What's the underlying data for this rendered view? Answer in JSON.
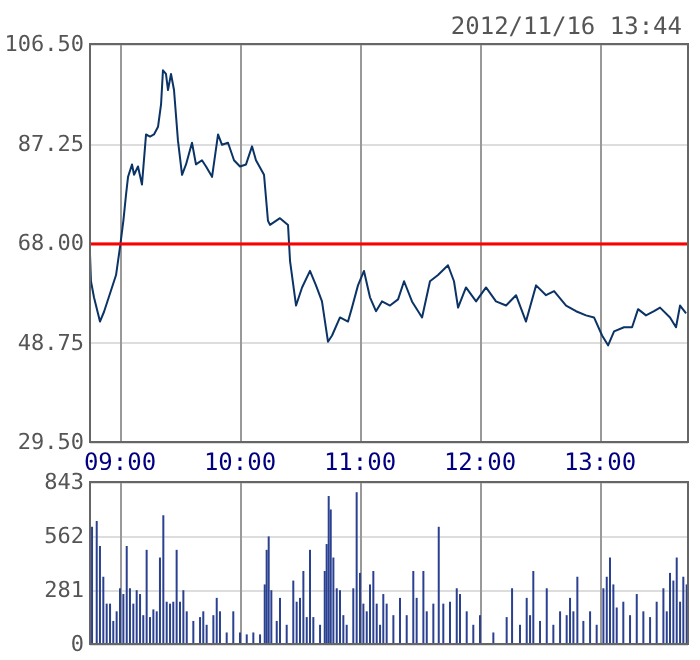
{
  "chart_data": [
    {
      "type": "line",
      "title": "2012/11/16 13:44",
      "x": [
        8.75,
        8.758,
        8.783,
        8.833,
        8.867,
        8.933,
        8.967,
        9.0,
        9.028,
        9.05,
        9.067,
        9.1,
        9.117,
        9.15,
        9.183,
        9.217,
        9.25,
        9.283,
        9.317,
        9.342,
        9.358,
        9.383,
        9.4,
        9.425,
        9.45,
        9.483,
        9.517,
        9.55,
        9.6,
        9.633,
        9.683,
        9.717,
        9.767,
        9.817,
        9.85,
        9.9,
        9.95,
        10.0,
        10.05,
        10.1,
        10.133,
        10.2,
        10.233,
        10.25,
        10.333,
        10.4,
        10.417,
        10.467,
        10.517,
        10.583,
        10.633,
        10.683,
        10.733,
        10.767,
        10.833,
        10.9,
        10.933,
        10.983,
        11.033,
        11.083,
        11.133,
        11.183,
        11.25,
        11.317,
        11.367,
        11.433,
        11.517,
        11.583,
        11.65,
        11.733,
        11.783,
        11.817,
        11.883,
        11.967,
        12.05,
        12.133,
        12.217,
        12.3,
        12.383,
        12.467,
        12.55,
        12.617,
        12.717,
        12.8,
        12.883,
        12.95,
        13.017,
        13.067,
        13.117,
        13.2,
        13.267,
        13.317,
        13.383,
        13.45,
        13.5,
        13.583,
        13.633,
        13.667,
        13.717
      ],
      "series": [
        {
          "color": "#0b3366",
          "values": [
            65.8,
            60.6,
            57.5,
            52.8,
            54.7,
            59.4,
            61.8,
            67.2,
            72.3,
            77.3,
            80.8,
            83.2,
            81.2,
            82.8,
            79.3,
            89,
            88.6,
            89,
            90.5,
            94.8,
            101.4,
            100.7,
            97.6,
            100.7,
            97.6,
            87.8,
            81.2,
            83.2,
            87.4,
            83.2,
            84,
            82.8,
            80.8,
            89,
            87,
            87.4,
            84,
            82.8,
            83.2,
            86.7,
            84,
            81.2,
            72.3,
            71.5,
            72.8,
            71.5,
            64.5,
            55.9,
            59.4,
            62.6,
            59.8,
            56.7,
            48.9,
            50.1,
            53.6,
            52.8,
            55.5,
            59.8,
            62.6,
            57.5,
            54.8,
            56.7,
            55.9,
            57.1,
            60.6,
            56.7,
            53.6,
            60.6,
            61.8,
            63.7,
            60.6,
            55.5,
            59.4,
            56.7,
            59.4,
            56.7,
            55.9,
            57.9,
            52.8,
            59.8,
            57.9,
            58.7,
            55.9,
            54.8,
            54,
            53.6,
            50.1,
            48.2,
            50.9,
            51.7,
            51.7,
            55.2,
            54,
            54.8,
            55.5,
            53.6,
            51.7,
            55.9,
            54.4
          ]
        }
      ],
      "xlim": [
        8.75,
        13.733
      ],
      "xticks": [
        {
          "value": 9,
          "label": "09:00"
        },
        {
          "value": 10,
          "label": "10:00"
        },
        {
          "value": 11,
          "label": "11:00"
        },
        {
          "value": 12,
          "label": "12:00"
        },
        {
          "value": 13,
          "label": "13:00"
        }
      ],
      "ylim": [
        29.5,
        106.5
      ],
      "yticks": [
        {
          "value": 29.5,
          "label": "29.50"
        },
        {
          "value": 48.75,
          "label": "48.75"
        },
        {
          "value": 68,
          "label": "68.00"
        },
        {
          "value": 87.25,
          "label": "87.25"
        },
        {
          "value": 106.5,
          "label": "106.50"
        }
      ],
      "ref_lines": [
        {
          "axis": "y",
          "value": 68,
          "color": "#ff0000"
        }
      ],
      "grid": true,
      "marker": "none",
      "line_style": "solid"
    },
    {
      "type": "bar",
      "x": [
        8.767,
        8.806,
        8.833,
        8.861,
        8.889,
        8.917,
        8.944,
        8.972,
        9.0,
        9.028,
        9.056,
        9.083,
        9.111,
        9.139,
        9.167,
        9.194,
        9.222,
        9.25,
        9.278,
        9.306,
        9.333,
        9.361,
        9.389,
        9.417,
        9.444,
        9.472,
        9.5,
        9.528,
        9.556,
        9.611,
        9.667,
        9.694,
        9.722,
        9.778,
        9.806,
        9.833,
        9.889,
        9.944,
        10.0,
        10.056,
        10.111,
        10.167,
        10.206,
        10.222,
        10.239,
        10.261,
        10.306,
        10.333,
        10.389,
        10.444,
        10.472,
        10.5,
        10.528,
        10.556,
        10.583,
        10.611,
        10.667,
        10.706,
        10.722,
        10.739,
        10.756,
        10.778,
        10.806,
        10.833,
        10.861,
        10.889,
        10.944,
        10.972,
        11.0,
        11.028,
        11.056,
        11.083,
        11.111,
        11.139,
        11.167,
        11.194,
        11.222,
        11.278,
        11.333,
        11.389,
        11.444,
        11.472,
        11.528,
        11.556,
        11.611,
        11.656,
        11.694,
        11.75,
        11.806,
        11.833,
        11.889,
        11.944,
        12.0,
        12.111,
        12.222,
        12.267,
        12.333,
        12.389,
        12.417,
        12.444,
        12.5,
        12.556,
        12.611,
        12.667,
        12.722,
        12.75,
        12.778,
        12.811,
        12.861,
        12.917,
        12.972,
        13.028,
        13.056,
        13.083,
        13.111,
        13.139,
        13.194,
        13.25,
        13.306,
        13.361,
        13.417,
        13.472,
        13.528,
        13.556,
        13.583,
        13.611,
        13.639,
        13.667,
        13.694,
        13.722
      ],
      "series": [
        {
          "color": "#2a4090",
          "values": [
            610,
            640,
            510,
            350,
            210,
            210,
            120,
            170,
            290,
            260,
            510,
            290,
            210,
            280,
            260,
            150,
            490,
            140,
            180,
            170,
            450,
            670,
            220,
            210,
            220,
            490,
            220,
            280,
            170,
            120,
            140,
            170,
            100,
            150,
            240,
            170,
            60,
            170,
            60,
            50,
            60,
            50,
            310,
            490,
            560,
            280,
            120,
            240,
            100,
            330,
            220,
            240,
            380,
            140,
            490,
            140,
            100,
            380,
            520,
            770,
            700,
            450,
            290,
            280,
            150,
            100,
            290,
            790,
            370,
            210,
            170,
            310,
            380,
            210,
            100,
            260,
            210,
            150,
            240,
            150,
            380,
            240,
            380,
            170,
            210,
            610,
            210,
            220,
            290,
            260,
            170,
            100,
            150,
            60,
            140,
            290,
            100,
            240,
            150,
            380,
            120,
            290,
            100,
            170,
            150,
            240,
            170,
            350,
            120,
            170,
            100,
            290,
            350,
            450,
            310,
            190,
            220,
            150,
            260,
            170,
            140,
            220,
            290,
            170,
            370,
            330,
            450,
            220,
            350,
            310
          ]
        }
      ],
      "xlim": [
        8.75,
        13.733
      ],
      "xticks": [
        9,
        10,
        11,
        12,
        13
      ],
      "ylim": [
        0,
        843
      ],
      "yticks": [
        0,
        281,
        562,
        843
      ],
      "tick_labels": "y",
      "grid": true
    }
  ]
}
